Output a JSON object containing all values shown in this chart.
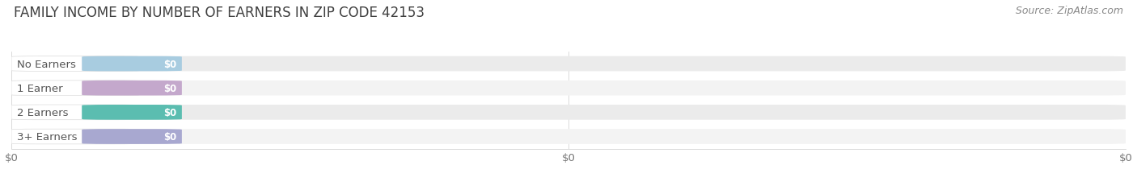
{
  "title": "FAMILY INCOME BY NUMBER OF EARNERS IN ZIP CODE 42153",
  "source": "Source: ZipAtlas.com",
  "categories": [
    "No Earners",
    "1 Earner",
    "2 Earners",
    "3+ Earners"
  ],
  "values": [
    0,
    0,
    0,
    0
  ],
  "bar_colors": [
    "#a8cce0",
    "#c4a8cc",
    "#5bbdb0",
    "#a8a8d0"
  ],
  "background_color": "#ffffff",
  "bar_bg_color": "#e8e8e8",
  "bar_bg_color2": "#f0f0f0",
  "xlim_max": 1.0,
  "xtick_labels": [
    "$0",
    "$0",
    "$0"
  ],
  "title_color": "#404040",
  "source_color": "#888888",
  "label_color": "#555555",
  "title_fontsize": 12,
  "label_fontsize": 9.5,
  "value_fontsize": 8.5,
  "source_fontsize": 9
}
